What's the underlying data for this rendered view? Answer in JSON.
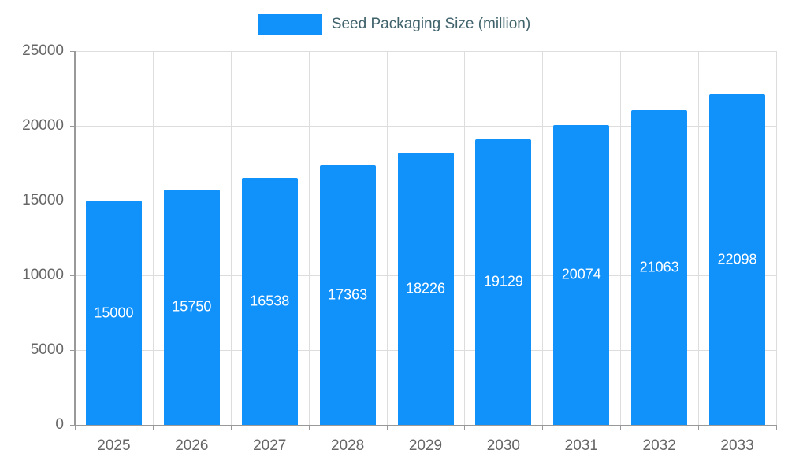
{
  "legend": {
    "label": "Seed Packaging Size (million)"
  },
  "chart_data": {
    "type": "bar",
    "title": "Seed Packaging Size (million)",
    "categories": [
      "2025",
      "2026",
      "2027",
      "2028",
      "2029",
      "2030",
      "2031",
      "2032",
      "2033"
    ],
    "values": [
      15000,
      15750,
      16538,
      17363,
      18226,
      19129,
      20074,
      21063,
      22098
    ],
    "xlabel": "",
    "ylabel": "",
    "ylim": [
      0,
      25000
    ],
    "yticks": [
      0,
      5000,
      10000,
      15000,
      20000,
      25000
    ],
    "grid": true,
    "legend_position": "top-center",
    "bar_color": "#1191fa",
    "value_label_color": "#ffffff",
    "axis_text_color": "#666666",
    "gridline_color": "#dddddd",
    "axis_line_color": "#999999"
  }
}
